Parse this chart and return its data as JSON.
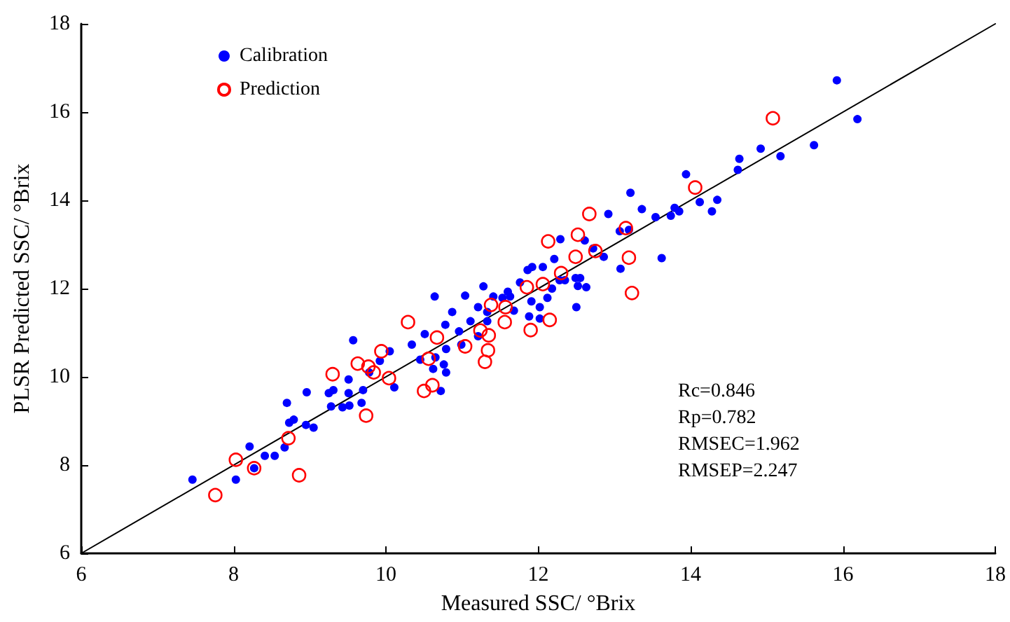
{
  "chart_data": {
    "type": "scatter",
    "xlabel": "Measured SSC/ °Brix",
    "ylabel": "PLSR Predicted SSC/ °Brix",
    "xlim": [
      6,
      18
    ],
    "xticks": [
      6,
      8,
      10,
      12,
      14,
      16,
      18
    ],
    "ylim": [
      6,
      18
    ],
    "yticks": [
      6,
      8,
      10,
      12,
      14,
      16,
      18
    ],
    "grid": false,
    "legend": "top left",
    "marker": "circle",
    "annotations": [
      "Rc=0.846",
      "Rp=0.782",
      "RMSEC=1.962",
      "RMSEP=2.247"
    ],
    "series": [
      {
        "name": "Calibration",
        "color": "#0000ff",
        "x": [
          7.46,
          8.03,
          8.21,
          8.27,
          8.41,
          8.54,
          8.67,
          8.7,
          8.73,
          8.79,
          8.96,
          8.95,
          9.05,
          9.25,
          9.31,
          9.28,
          9.43,
          9.52,
          9.51,
          9.51,
          9.57,
          9.68,
          9.7,
          9.78,
          9.92,
          10.05,
          10.11,
          10.34,
          10.51,
          10.45,
          10.62,
          10.65,
          10.72,
          10.76,
          10.64,
          11.04,
          10.87,
          10.78,
          10.79,
          10.79,
          10.96,
          10.99,
          11.11,
          11.21,
          11.28,
          11.21,
          11.33,
          11.33,
          11.41,
          11.53,
          11.6,
          11.63,
          11.68,
          11.76,
          11.86,
          11.92,
          11.91,
          11.88,
          12.02,
          12.02,
          12.06,
          12.12,
          12.18,
          12.21,
          12.28,
          12.29,
          12.35,
          12.49,
          12.55,
          12.52,
          12.63,
          12.5,
          12.61,
          12.72,
          12.86,
          12.92,
          13.08,
          13.07,
          13.19,
          13.36,
          13.54,
          13.62,
          13.21,
          13.74,
          13.79,
          13.85,
          13.94,
          14.12,
          14.28,
          14.35,
          14.62,
          14.64,
          14.92,
          15.18,
          15.62,
          15.92,
          16.19
        ],
        "values": [
          7.67,
          7.67,
          8.42,
          7.93,
          8.21,
          8.21,
          8.4,
          9.41,
          8.96,
          9.03,
          9.65,
          8.91,
          8.85,
          9.63,
          9.7,
          9.33,
          9.31,
          9.35,
          9.63,
          9.94,
          10.83,
          9.41,
          9.7,
          10.1,
          10.36,
          10.58,
          9.76,
          10.73,
          10.97,
          10.39,
          10.18,
          10.44,
          9.68,
          10.28,
          11.82,
          11.84,
          11.47,
          11.18,
          10.63,
          10.1,
          11.03,
          10.73,
          11.26,
          11.58,
          12.05,
          10.92,
          11.26,
          11.47,
          11.82,
          11.79,
          11.93,
          11.82,
          11.5,
          12.14,
          12.42,
          12.49,
          11.71,
          11.37,
          11.58,
          11.32,
          12.49,
          11.79,
          12.0,
          12.67,
          12.19,
          13.12,
          12.19,
          12.24,
          12.24,
          12.06,
          12.03,
          11.58,
          13.09,
          12.91,
          12.72,
          13.69,
          12.45,
          13.3,
          13.33,
          13.8,
          13.62,
          12.69,
          14.17,
          13.65,
          13.83,
          13.75,
          14.59,
          13.96,
          13.75,
          14.01,
          14.69,
          14.94,
          15.17,
          15.0,
          15.25,
          16.72,
          15.84
        ]
      },
      {
        "name": "Prediction",
        "color": "#ff0000",
        "x": [
          7.76,
          8.03,
          8.27,
          8.72,
          8.86,
          9.3,
          9.63,
          9.77,
          9.74,
          9.84,
          9.94,
          10.04,
          10.5,
          10.61,
          10.56,
          10.67,
          10.29,
          11.04,
          11.24,
          11.35,
          11.34,
          11.3,
          11.38,
          11.57,
          11.56,
          11.85,
          12.06,
          11.9,
          12.15,
          12.3,
          12.13,
          12.49,
          12.52,
          12.75,
          12.67,
          13.15,
          13.19,
          13.23,
          14.06,
          15.08
        ],
        "values": [
          7.32,
          8.12,
          7.93,
          8.61,
          7.77,
          10.06,
          10.3,
          10.23,
          9.12,
          10.1,
          10.58,
          9.97,
          9.68,
          9.81,
          10.41,
          10.89,
          11.24,
          10.69,
          11.05,
          10.94,
          10.6,
          10.34,
          11.63,
          11.58,
          11.24,
          12.03,
          12.1,
          11.06,
          11.29,
          12.35,
          13.07,
          12.72,
          13.22,
          12.85,
          13.69,
          13.37,
          12.7,
          11.9,
          14.29,
          15.86
        ]
      },
      {
        "type": "line",
        "marker": "none",
        "color": "#000000",
        "x": [
          6,
          18
        ],
        "values": [
          6,
          18
        ]
      }
    ]
  }
}
